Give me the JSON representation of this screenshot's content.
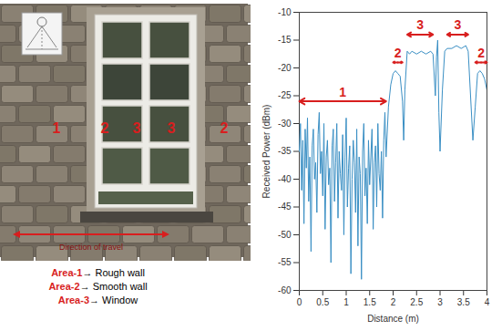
{
  "chart_data": {
    "type": "line",
    "x_label": "Distance (m)",
    "y_label": "Received Power (dBm)",
    "x": [
      0,
      0.025,
      0.05,
      0.075,
      0.1,
      0.125,
      0.15,
      0.175,
      0.2,
      0.225,
      0.25,
      0.275,
      0.3,
      0.325,
      0.35,
      0.375,
      0.4,
      0.425,
      0.45,
      0.475,
      0.5,
      0.525,
      0.55,
      0.575,
      0.6,
      0.625,
      0.65,
      0.675,
      0.7,
      0.725,
      0.75,
      0.775,
      0.8,
      0.825,
      0.85,
      0.875,
      0.9,
      0.925,
      0.95,
      0.975,
      1,
      1.025,
      1.05,
      1.075,
      1.1,
      1.125,
      1.15,
      1.175,
      1.2,
      1.225,
      1.25,
      1.275,
      1.3,
      1.325,
      1.35,
      1.375,
      1.4,
      1.425,
      1.45,
      1.475,
      1.5,
      1.525,
      1.55,
      1.575,
      1.6,
      1.625,
      1.65,
      1.675,
      1.7,
      1.725,
      1.75,
      1.775,
      1.8,
      1.825,
      1.85,
      1.9,
      1.95,
      2,
      2.05,
      2.1,
      2.15,
      2.2,
      2.225,
      2.25,
      2.3,
      2.35,
      2.4,
      2.5,
      2.6,
      2.7,
      2.8,
      2.85,
      2.9,
      2.925,
      2.95,
      2.975,
      3,
      3.05,
      3.1,
      3.15,
      3.25,
      3.35,
      3.45,
      3.55,
      3.6,
      3.65,
      3.7,
      3.75,
      3.8,
      3.85,
      3.9,
      3.95,
      4
    ],
    "values": [
      -35,
      -30,
      -42,
      -33,
      -48,
      -31,
      -38,
      -29,
      -44,
      -36,
      -53,
      -34,
      -31,
      -40,
      -37,
      -46,
      -32,
      -28,
      -39,
      -35,
      -43,
      -30,
      -49,
      -36,
      -33,
      -41,
      -38,
      -55,
      -34,
      -31,
      -44,
      -37,
      -30,
      -47,
      -35,
      -39,
      -42,
      -32,
      -50,
      -36,
      -29,
      -45,
      -38,
      -34,
      -57,
      -40,
      -33,
      -37,
      -46,
      -31,
      -52,
      -36,
      -39,
      -58,
      -35,
      -30,
      -43,
      -38,
      -48,
      -33,
      -41,
      -36,
      -31,
      -49,
      -37,
      -34,
      -45,
      -30,
      -39,
      -42,
      -35,
      -47,
      -33,
      -28,
      -36,
      -27,
      -23,
      -21,
      -20.5,
      -21,
      -21.5,
      -26,
      -33,
      -24,
      -17,
      -17.5,
      -17,
      -17.5,
      -17,
      -17.5,
      -17,
      -17.5,
      -25,
      -18,
      -15,
      -28,
      -35,
      -24,
      -17,
      -16.5,
      -16.5,
      -16,
      -16.5,
      -16,
      -17,
      -25,
      -33,
      -27,
      -21,
      -20.5,
      -21,
      -22,
      -24
    ],
    "color": "#3a8fc4",
    "xlim": [
      0,
      4
    ],
    "xticks": [
      0,
      0.5,
      1,
      1.5,
      2,
      2.5,
      3,
      3.5,
      4
    ],
    "ylim": [
      -60,
      -10
    ],
    "yticks": [
      -60,
      -55,
      -50,
      -45,
      -40,
      -35,
      -30,
      -25,
      -20,
      -15,
      -10
    ],
    "grid": false,
    "annotations": [
      {
        "text": "1",
        "x": [
          0,
          1.85
        ],
        "y": -26,
        "color": "#d81e1e"
      },
      {
        "text": "2",
        "x": [
          2,
          2.2
        ],
        "y": -19,
        "color": "#d81e1e"
      },
      {
        "text": "3",
        "x": [
          2.3,
          2.85
        ],
        "y": -14,
        "color": "#d81e1e"
      },
      {
        "text": "3",
        "x": [
          3.15,
          3.6
        ],
        "y": -14,
        "color": "#d81e1e"
      },
      {
        "text": "2",
        "x": [
          3.75,
          4
        ],
        "y": -19,
        "color": "#d81e1e"
      }
    ]
  },
  "photo": {
    "area_labels": [
      "1",
      "2",
      "3",
      "3",
      "2"
    ],
    "label_color": "#d81e1e",
    "direction_text": "Direction of travel",
    "legend_arrow": "→",
    "legend_items": [
      {
        "area": "Area-1",
        "text": "Rough wall"
      },
      {
        "area": "Area-2",
        "text": "Smooth wall"
      },
      {
        "area": "Area-3",
        "text": "Window"
      }
    ]
  }
}
